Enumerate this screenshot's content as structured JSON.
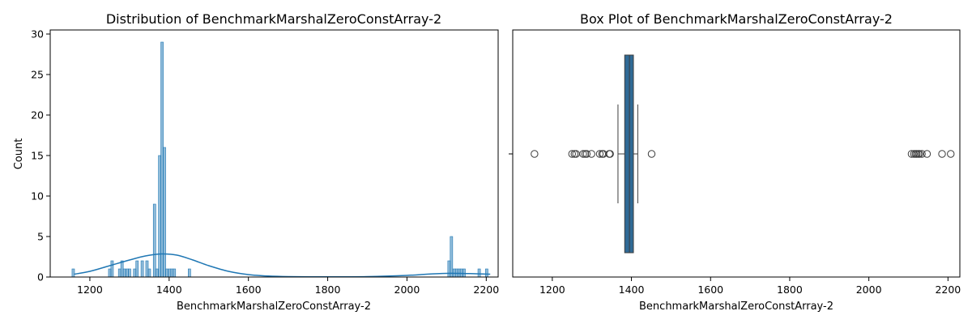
{
  "chart_data": [
    {
      "type": "bar",
      "title": "Distribution of BenchmarkMarshalZeroConstArray-2",
      "xlabel": "BenchmarkMarshalZeroConstArray-2",
      "ylabel": "Count",
      "xlim": [
        1100,
        2230
      ],
      "ylim": [
        0,
        30.5
      ],
      "x_ticks": [
        1200,
        1400,
        1600,
        1800,
        2000,
        2200
      ],
      "y_ticks": [
        0,
        5,
        10,
        15,
        20,
        25,
        30
      ],
      "bar_color": "#1f77b4",
      "bin_width": 6.3,
      "histogram": {
        "bin_starts": [
          1155,
          1247,
          1253,
          1272,
          1278,
          1284,
          1291,
          1297,
          1310,
          1316,
          1329,
          1341,
          1347,
          1360,
          1366,
          1373,
          1379,
          1385,
          1391,
          1398,
          1404,
          1410,
          1448,
          2103,
          2109,
          2116,
          2122,
          2128,
          2134,
          2141,
          2179,
          2198
        ],
        "counts": [
          1,
          1,
          2,
          1,
          2,
          1,
          1,
          1,
          1,
          2,
          2,
          2,
          1,
          9,
          1,
          15,
          29,
          16,
          1,
          1,
          1,
          1,
          1,
          2,
          5,
          1,
          1,
          1,
          1,
          1,
          1,
          1
        ]
      },
      "kde": {
        "x": [
          1160,
          1200,
          1250,
          1300,
          1340,
          1380,
          1420,
          1460,
          1500,
          1550,
          1600,
          1650,
          1700,
          1800,
          1900,
          2000,
          2050,
          2100,
          2130,
          2160,
          2210
        ],
        "y": [
          0.35,
          0.7,
          1.4,
          2.1,
          2.6,
          2.85,
          2.7,
          2.1,
          1.4,
          0.7,
          0.3,
          0.12,
          0.05,
          0.02,
          0.05,
          0.2,
          0.35,
          0.45,
          0.45,
          0.42,
          0.35
        ]
      }
    },
    {
      "type": "box",
      "title": "Box Plot of BenchmarkMarshalZeroConstArray-2",
      "xlabel": "BenchmarkMarshalZeroConstArray-2",
      "xlim": [
        1100,
        2230
      ],
      "x_ticks": [
        1200,
        1400,
        1600,
        1800,
        2000,
        2200
      ],
      "box_color": "#2f6a96",
      "q1": 1383,
      "median": 1395,
      "q3": 1405,
      "whisker_low": 1366,
      "whisker_high": 1416,
      "outliers": [
        1155,
        1250,
        1256,
        1260,
        1278,
        1283,
        1287,
        1299,
        1320,
        1326,
        1329,
        1344,
        1346,
        1451,
        2108,
        2114,
        2118,
        2121,
        2125,
        2128,
        2134,
        2147,
        2185,
        2207
      ]
    }
  ]
}
